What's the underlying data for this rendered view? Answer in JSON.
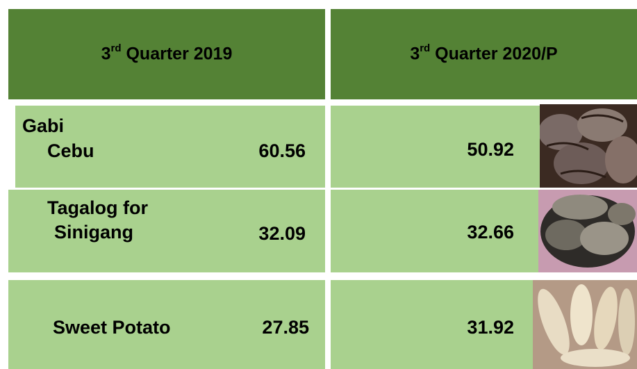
{
  "header": {
    "columns": [
      {
        "number": "3",
        "superscript": "rd",
        "text": "Quarter 2019"
      },
      {
        "number": "3",
        "superscript": "rd",
        "text": "Quarter 2020/P"
      }
    ]
  },
  "table": {
    "group": "Gabi",
    "rows": [
      {
        "name": [
          "Cebu"
        ],
        "q2019": 60.56,
        "q2020": 50.92
      },
      {
        "name": [
          "Tagalog for",
          "Sinigang"
        ],
        "q2019": 32.09,
        "q2020": 32.66
      },
      {
        "name": [
          "Sweet Potato"
        ],
        "q2019": 27.85,
        "q2020": 31.92
      }
    ]
  }
}
